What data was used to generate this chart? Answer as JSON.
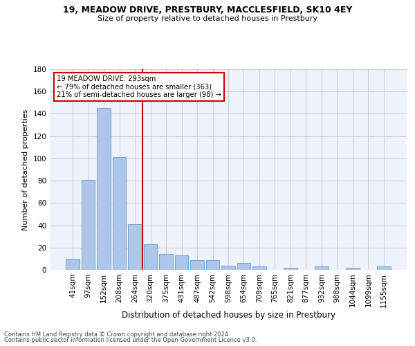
{
  "title1": "19, MEADOW DRIVE, PRESTBURY, MACCLESFIELD, SK10 4EY",
  "title2": "Size of property relative to detached houses in Prestbury",
  "xlabel": "Distribution of detached houses by size in Prestbury",
  "ylabel": "Number of detached properties",
  "categories": [
    "41sqm",
    "97sqm",
    "152sqm",
    "208sqm",
    "264sqm",
    "320sqm",
    "375sqm",
    "431sqm",
    "487sqm",
    "542sqm",
    "598sqm",
    "654sqm",
    "709sqm",
    "765sqm",
    "821sqm",
    "877sqm",
    "932sqm",
    "988sqm",
    "1044sqm",
    "1099sqm",
    "1155sqm"
  ],
  "values": [
    10,
    81,
    145,
    101,
    41,
    23,
    14,
    13,
    9,
    9,
    4,
    6,
    3,
    0,
    2,
    0,
    3,
    0,
    2,
    0,
    3
  ],
  "bar_color": "#aec6e8",
  "bar_edge_color": "#6699cc",
  "vline_x": 4.5,
  "vline_color": "#cc0000",
  "annotation_text": "19 MEADOW DRIVE: 293sqm\n← 79% of detached houses are smaller (363)\n21% of semi-detached houses are larger (98) →",
  "annotation_box_color": "#cc0000",
  "ylim": [
    0,
    180
  ],
  "yticks": [
    0,
    20,
    40,
    60,
    80,
    100,
    120,
    140,
    160,
    180
  ],
  "grid_color": "#cccccc",
  "background_color": "#eef2fa",
  "footer1": "Contains HM Land Registry data © Crown copyright and database right 2024.",
  "footer2": "Contains public sector information licensed under the Open Government Licence v3.0."
}
